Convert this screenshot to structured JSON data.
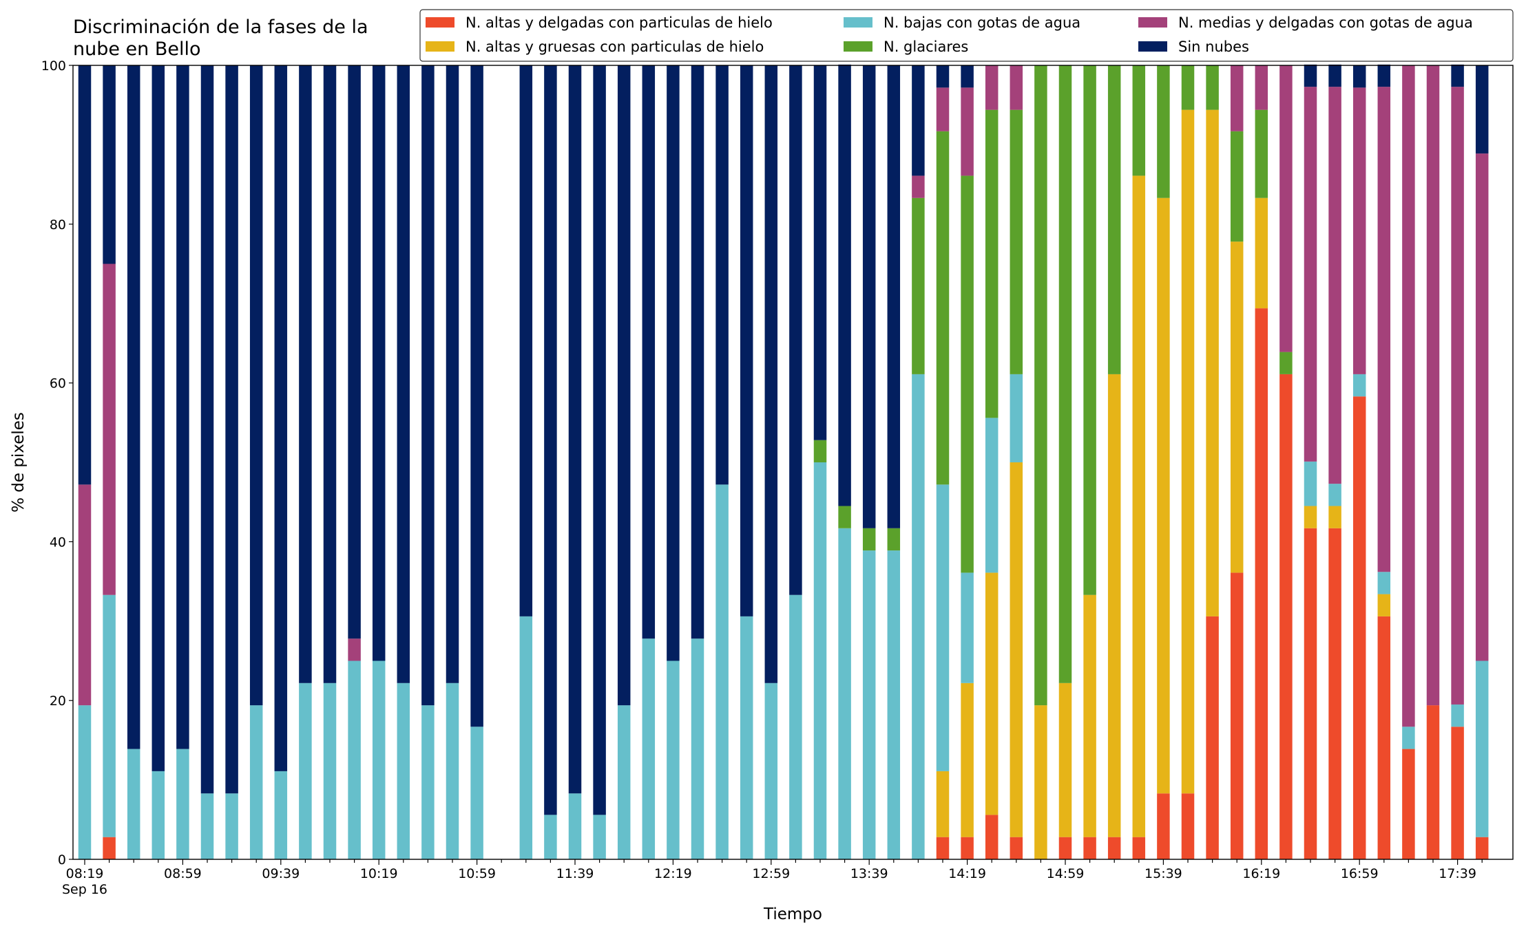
{
  "chart_data": {
    "type": "stacked_bar",
    "title": "Discriminación de la fases de la\nnube en Bello",
    "x_label": "Tiempo",
    "y_label": "% de pixeles",
    "x_date_label": "Sep 16",
    "categories": [
      "08:19",
      null,
      null,
      null,
      "08:59",
      null,
      null,
      null,
      "09:39",
      null,
      null,
      null,
      "10:19",
      null,
      null,
      null,
      "10:59",
      null,
      null,
      null,
      "11:39",
      null,
      null,
      null,
      "12:19",
      null,
      null,
      null,
      "12:59",
      null,
      null,
      null,
      "13:39",
      null,
      null,
      null,
      "14:19",
      null,
      null,
      null,
      "14:59",
      null,
      null,
      null,
      "15:39",
      null,
      null,
      null,
      "16:19",
      null,
      null,
      null,
      "16:59",
      null,
      null,
      null,
      "17:39",
      null
    ],
    "ylim": [
      0,
      100
    ],
    "yticks": [
      0,
      20,
      40,
      60,
      80,
      100
    ],
    "legend": "top-right",
    "series": [
      {
        "name": "N. altas y delgadas con particulas de hielo",
        "color": "#ee4b2b",
        "values": [
          0,
          2.8,
          0,
          0,
          0,
          0,
          0,
          0,
          0,
          0,
          0,
          0,
          0,
          0,
          0,
          0,
          0,
          null,
          0,
          0,
          0,
          0,
          0,
          0,
          0,
          0,
          0,
          0,
          0,
          0,
          0,
          0,
          0,
          0,
          0,
          2.8,
          2.8,
          5.6,
          2.8,
          0,
          2.8,
          2.8,
          2.8,
          2.8,
          8.3,
          8.3,
          30.6,
          36.1,
          69.4,
          61.1,
          41.7,
          41.7,
          58.3,
          30.6,
          13.9,
          19.4,
          16.7,
          2.8
        ]
      },
      {
        "name": "N. altas y gruesas con particulas de hielo",
        "color": "#e6b418",
        "values": [
          0,
          0,
          0,
          0,
          0,
          0,
          0,
          0,
          0,
          0,
          0,
          0,
          0,
          0,
          0,
          0,
          0,
          null,
          0,
          0,
          0,
          0,
          0,
          0,
          0,
          0,
          0,
          0,
          0,
          0,
          0,
          0,
          0,
          0,
          0,
          8.3,
          19.4,
          30.5,
          47.2,
          19.4,
          19.4,
          30.5,
          58.3,
          83.3,
          75,
          86.1,
          63.8,
          41.7,
          13.9,
          0,
          2.8,
          2.8,
          0,
          2.8,
          0,
          0,
          0,
          0
        ]
      },
      {
        "name": "N. bajas con gotas de agua",
        "color": "#66bfcb",
        "values": [
          19.4,
          30.5,
          13.9,
          11.1,
          13.9,
          8.3,
          8.3,
          19.4,
          11.1,
          22.2,
          22.2,
          25,
          25,
          22.2,
          19.4,
          22.2,
          16.7,
          null,
          30.6,
          5.6,
          8.3,
          5.6,
          19.4,
          27.8,
          25,
          27.8,
          47.2,
          30.6,
          22.2,
          33.3,
          50,
          41.7,
          38.9,
          38.9,
          61.1,
          36.1,
          13.9,
          19.5,
          11.1,
          0,
          0,
          0,
          0,
          0,
          0,
          0,
          0,
          0,
          0,
          0,
          5.6,
          2.8,
          2.8,
          2.8,
          2.8,
          0,
          2.8,
          22.2
        ]
      },
      {
        "name": "N. glaciares",
        "color": "#5ba12b",
        "values": [
          0,
          0,
          0,
          0,
          0,
          0,
          0,
          0,
          0,
          0,
          0,
          0,
          0,
          0,
          0,
          0,
          0,
          null,
          0,
          0,
          0,
          0,
          0,
          0,
          0,
          0,
          0,
          0,
          0,
          0,
          2.8,
          2.8,
          2.8,
          2.8,
          22.2,
          44.5,
          50,
          38.8,
          33.3,
          80.6,
          77.8,
          66.7,
          38.9,
          13.9,
          16.7,
          5.6,
          5.6,
          13.9,
          11.1,
          2.8,
          0,
          0,
          0,
          0,
          0,
          0,
          0,
          0
        ]
      },
      {
        "name": "N. medias y delgadas con gotas de agua",
        "color": "#a4417a",
        "values": [
          27.8,
          41.7,
          0,
          0,
          0,
          0,
          0,
          0,
          0,
          0,
          0,
          2.8,
          0,
          0,
          0,
          0,
          0,
          null,
          0,
          0,
          0,
          0,
          0,
          0,
          0,
          0,
          0,
          0,
          0,
          0,
          0,
          0,
          0,
          0,
          2.8,
          5.5,
          11.1,
          5.6,
          5.6,
          0,
          0,
          0,
          0,
          0,
          0,
          0,
          0,
          8.3,
          5.6,
          36.1,
          47.2,
          50,
          36.1,
          61.1,
          83.3,
          80.6,
          77.8,
          63.9
        ]
      },
      {
        "name": "Sin nubes",
        "color": "#031f5f",
        "values": [
          52.8,
          25,
          86.1,
          88.9,
          86.1,
          91.7,
          91.7,
          80.6,
          88.9,
          77.8,
          77.8,
          72.2,
          75,
          77.8,
          80.6,
          77.8,
          83.3,
          null,
          69.4,
          94.4,
          91.7,
          94.4,
          80.6,
          72.2,
          75,
          72.2,
          52.8,
          69.4,
          77.8,
          66.7,
          47.2,
          55.6,
          58.3,
          58.3,
          13.9,
          2.8,
          2.8,
          0,
          0,
          0,
          0,
          0,
          0,
          0,
          0,
          0,
          0,
          0,
          0,
          0,
          2.8,
          2.8,
          2.8,
          2.8,
          0,
          0,
          2.8,
          11.1
        ]
      }
    ]
  }
}
